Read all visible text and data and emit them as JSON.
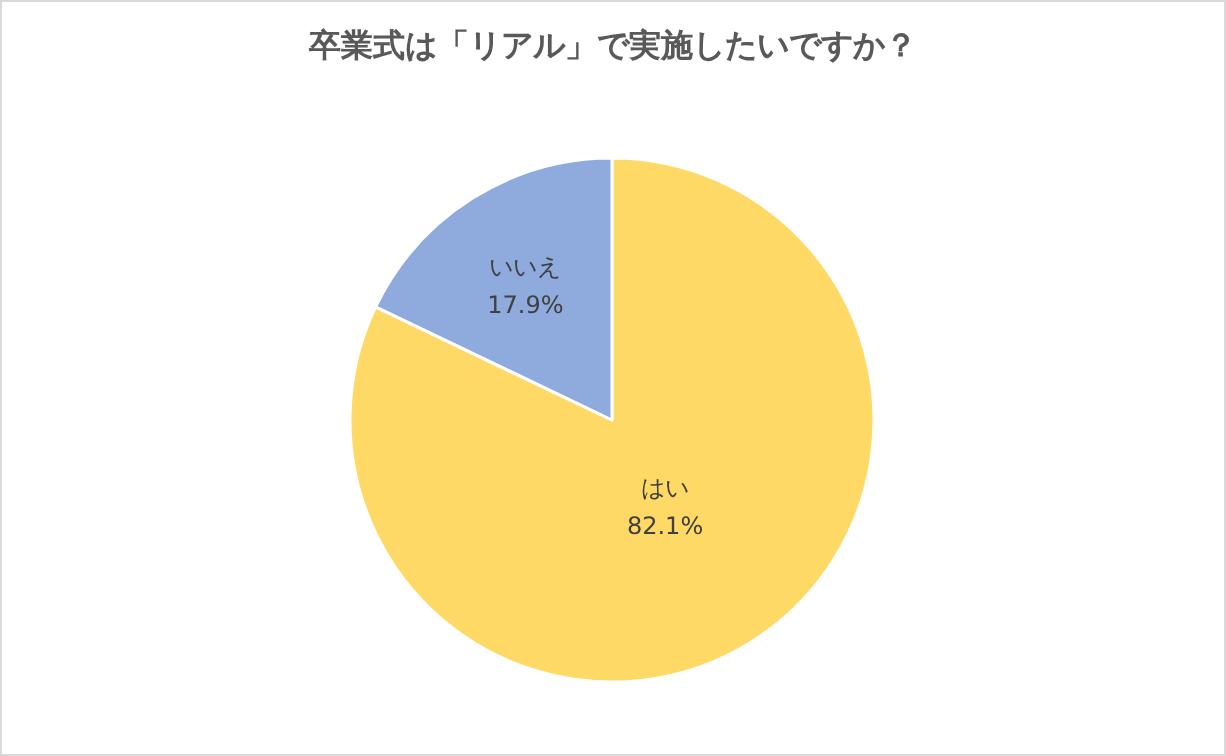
{
  "chart_data": {
    "type": "pie",
    "title": "卒業式は「リアル」で実施したいですか？",
    "categories": [
      "はい",
      "いいえ"
    ],
    "values": [
      82.1,
      17.9
    ],
    "value_labels": [
      "82.1%",
      "17.9%"
    ],
    "colors": [
      "#ffd966",
      "#8faadc"
    ]
  }
}
